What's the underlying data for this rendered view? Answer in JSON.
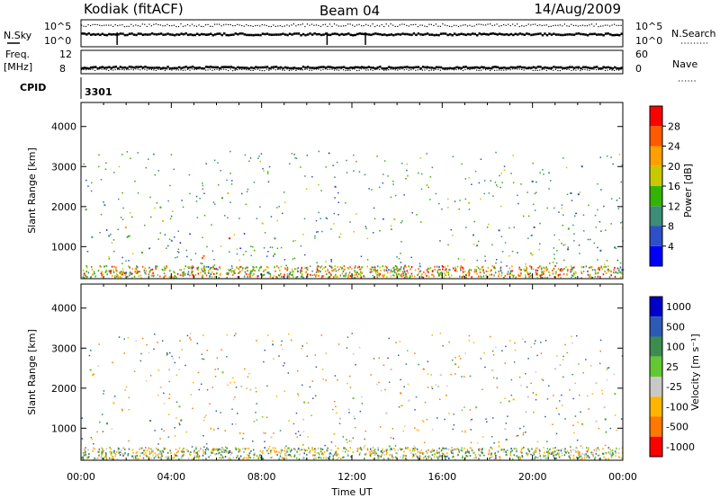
{
  "header": {
    "station": "Kodiak (fitACF)",
    "beam": "Beam 04",
    "date": "14/Aug/2009"
  },
  "strips": {
    "nsky_label": "N.Sky",
    "nsearch_label": "N.Search",
    "freq_label_1": "Freq.",
    "freq_label_2": "[MHz]",
    "nave_label": "Nave",
    "cpid_label": "CPID",
    "cpid_value": "3301",
    "nsky_ticks": [
      "10^5",
      "10^0"
    ],
    "nsearch_ticks": [
      "10^5",
      "10^0"
    ],
    "freq_ticks": [
      "12",
      "8"
    ],
    "nave_ticks": [
      "60",
      "0"
    ]
  },
  "chart_data": [
    {
      "type": "heatmap",
      "name": "power-panel",
      "ylabel": "Slant Range [km]",
      "xlabel": "",
      "xlim": [
        0,
        24
      ],
      "ylim": [
        200,
        4600
      ],
      "y_ticks": [
        1000,
        2000,
        3000,
        4000
      ],
      "colorbar": {
        "label": "Power [dB]",
        "ticks": [
          4,
          8,
          12,
          16,
          20,
          24,
          28
        ],
        "range": [
          0,
          32
        ],
        "colors": [
          "#0000ff",
          "#2d50c8",
          "#3c8c78",
          "#32b400",
          "#c8c800",
          "#ffa000",
          "#ff5a00",
          "#ff0000"
        ]
      },
      "regions": [
        {
          "t0": 0.1,
          "t1": 2.0,
          "r0": 400,
          "r1": 2600,
          "level": 10
        },
        {
          "t0": 0.2,
          "t1": 2.0,
          "r0": 1300,
          "r1": 1700,
          "level": 18
        },
        {
          "t0": 2.0,
          "t1": 4.5,
          "r0": 600,
          "r1": 1500,
          "level": 12
        },
        {
          "t0": 3.0,
          "t1": 4.8,
          "r0": 1600,
          "r1": 2400,
          "level": 16
        },
        {
          "t0": 4.3,
          "t1": 7.4,
          "r0": 300,
          "r1": 1000,
          "level": 29
        },
        {
          "t0": 5.6,
          "t1": 7.0,
          "r0": 1000,
          "r1": 1400,
          "level": 28
        },
        {
          "t0": 6.0,
          "t1": 8.8,
          "r0": 1500,
          "r1": 2400,
          "level": 18
        },
        {
          "t0": 8.0,
          "t1": 9.0,
          "r0": 500,
          "r1": 2300,
          "level": 11
        },
        {
          "t0": 10.8,
          "t1": 11.8,
          "r0": 2100,
          "r1": 2800,
          "level": 9
        },
        {
          "t0": 13.4,
          "t1": 14.2,
          "r0": 1300,
          "r1": 2100,
          "level": 17
        },
        {
          "t0": 13.5,
          "t1": 15.8,
          "r0": 2500,
          "r1": 3200,
          "level": 22
        },
        {
          "t0": 14.2,
          "t1": 17.2,
          "r0": 1900,
          "r1": 2300,
          "level": 15
        },
        {
          "t0": 17.3,
          "t1": 24.0,
          "r0": 400,
          "r1": 1700,
          "level": 10
        },
        {
          "t0": 17.8,
          "t1": 21.6,
          "r0": 600,
          "r1": 1000,
          "level": 20
        },
        {
          "t0": 18.5,
          "t1": 22.5,
          "r0": 2300,
          "r1": 3200,
          "level": 8
        }
      ]
    },
    {
      "type": "heatmap",
      "name": "velocity-panel",
      "ylabel": "Slant Range [km]",
      "xlabel": "Time UT",
      "xlim": [
        0,
        24
      ],
      "ylim": [
        200,
        4600
      ],
      "x_ticks": [
        "00:00",
        "04:00",
        "08:00",
        "12:00",
        "16:00",
        "20:00",
        "00:00"
      ],
      "y_ticks": [
        1000,
        2000,
        3000,
        4000
      ],
      "colorbar": {
        "label": "Velocity [m s⁻¹]",
        "ticks": [
          1000,
          500,
          100,
          25,
          -25,
          -100,
          -500,
          -1000
        ],
        "colors": [
          "#0000c8",
          "#2d5ab4",
          "#3c8c50",
          "#64c832",
          "#c8c8c8",
          "#ffb400",
          "#ff7800",
          "#ff0000"
        ]
      },
      "regions": [
        {
          "t0": 0.2,
          "t1": 24.0,
          "r0": 300,
          "r1": 2700,
          "vel": 0
        },
        {
          "t0": 5.4,
          "t1": 6.6,
          "r0": 600,
          "r1": 1100,
          "vel": -80
        },
        {
          "t0": 3.6,
          "t1": 4.4,
          "r0": 2000,
          "r1": 2300,
          "vel": -120
        },
        {
          "t0": 4.2,
          "t1": 4.8,
          "r0": 1600,
          "r1": 1900,
          "vel": 60
        },
        {
          "t0": 13.4,
          "t1": 14.2,
          "r0": 1300,
          "r1": 2100,
          "vel": -300
        },
        {
          "t0": 14.6,
          "t1": 15.8,
          "r0": 2400,
          "r1": 2900,
          "vel": -150
        },
        {
          "t0": 6.5,
          "t1": 7.5,
          "r0": 300,
          "r1": 700,
          "vel": 80
        }
      ]
    }
  ]
}
